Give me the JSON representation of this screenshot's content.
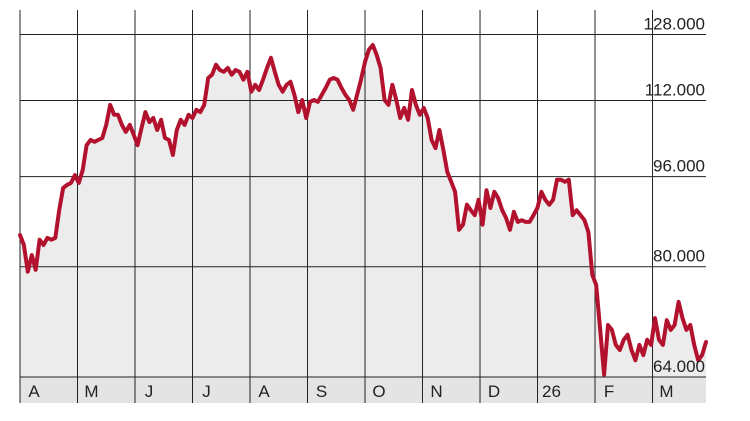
{
  "chart_data": {
    "type": "area",
    "color": "#b3122e",
    "fill": "#ececec",
    "log_scale": true,
    "grid": true,
    "xlim": [
      0,
      11.93
    ],
    "xticks": [
      {
        "value": 0,
        "label": "A"
      },
      {
        "value": 1,
        "label": "M"
      },
      {
        "value": 2,
        "label": "J"
      },
      {
        "value": 3,
        "label": "J"
      },
      {
        "value": 4,
        "label": "A"
      },
      {
        "value": 5,
        "label": "S"
      },
      {
        "value": 6,
        "label": "O"
      },
      {
        "value": 7,
        "label": "N"
      },
      {
        "value": 8,
        "label": "D"
      },
      {
        "value": 9,
        "label": "26"
      },
      {
        "value": 10,
        "label": "F"
      },
      {
        "value": 11,
        "label": "M"
      }
    ],
    "ylim": [
      64,
      134.5
    ],
    "yticks": [
      {
        "value": 64,
        "label": "64.000"
      },
      {
        "value": 80,
        "label": "80.000"
      },
      {
        "value": 96,
        "label": "96.000"
      },
      {
        "value": 112,
        "label": "112.000"
      },
      {
        "value": 128,
        "label": "128.000"
      }
    ],
    "values": [
      85.3,
      83.6,
      79.2,
      81.9,
      79.5,
      84.5,
      83.6,
      84.8,
      84.5,
      84.8,
      89.7,
      93.8,
      94.4,
      94.8,
      96.3,
      94.8,
      97.3,
      102.3,
      103.4,
      103.0,
      103.4,
      103.8,
      106.6,
      111.0,
      108.8,
      108.8,
      106.6,
      105.1,
      106.6,
      104.5,
      102.3,
      105.9,
      109.4,
      107.2,
      108.1,
      105.5,
      107.7,
      103.8,
      103.4,
      100.3,
      105.5,
      107.7,
      106.6,
      108.8,
      108.1,
      109.9,
      109.4,
      111.0,
      117.2,
      118.0,
      120.4,
      119.1,
      118.7,
      119.6,
      118.0,
      119.1,
      118.7,
      116.8,
      118.7,
      114.0,
      115.6,
      114.4,
      116.8,
      119.6,
      122.1,
      118.7,
      115.6,
      114.0,
      115.6,
      116.3,
      113.3,
      109.4,
      112.1,
      108.1,
      111.7,
      112.1,
      111.7,
      113.3,
      114.9,
      116.8,
      117.2,
      116.8,
      114.9,
      113.3,
      112.1,
      109.9,
      113.3,
      116.8,
      121.1,
      124.1,
      125.3,
      122.8,
      119.6,
      112.1,
      111.0,
      115.6,
      112.1,
      108.1,
      110.3,
      107.7,
      114.4,
      111.0,
      108.8,
      110.3,
      108.1,
      103.4,
      101.7,
      105.5,
      101.3,
      96.9,
      95.0,
      93.1,
      86.2,
      87.1,
      90.7,
      89.7,
      88.8,
      91.6,
      87.1,
      93.4,
      90.1,
      93.1,
      91.9,
      89.7,
      88.3,
      86.2,
      89.4,
      87.6,
      87.9,
      87.6,
      87.6,
      88.8,
      90.1,
      93.1,
      91.6,
      90.7,
      91.6,
      95.4,
      95.4,
      95.0,
      95.4,
      88.8,
      89.7,
      88.8,
      87.9,
      85.8,
      78.7,
      77.1,
      70.4,
      64.3,
      71.1,
      70.4,
      68.3,
      67.6,
      69.0,
      69.7,
      67.6,
      66.2,
      68.3,
      66.9,
      69.0,
      68.3,
      72.1,
      69.0,
      68.3,
      71.8,
      70.4,
      71.1,
      74.5,
      72.1,
      70.4,
      71.1,
      68.3,
      66.2,
      66.9,
      68.7
    ]
  }
}
